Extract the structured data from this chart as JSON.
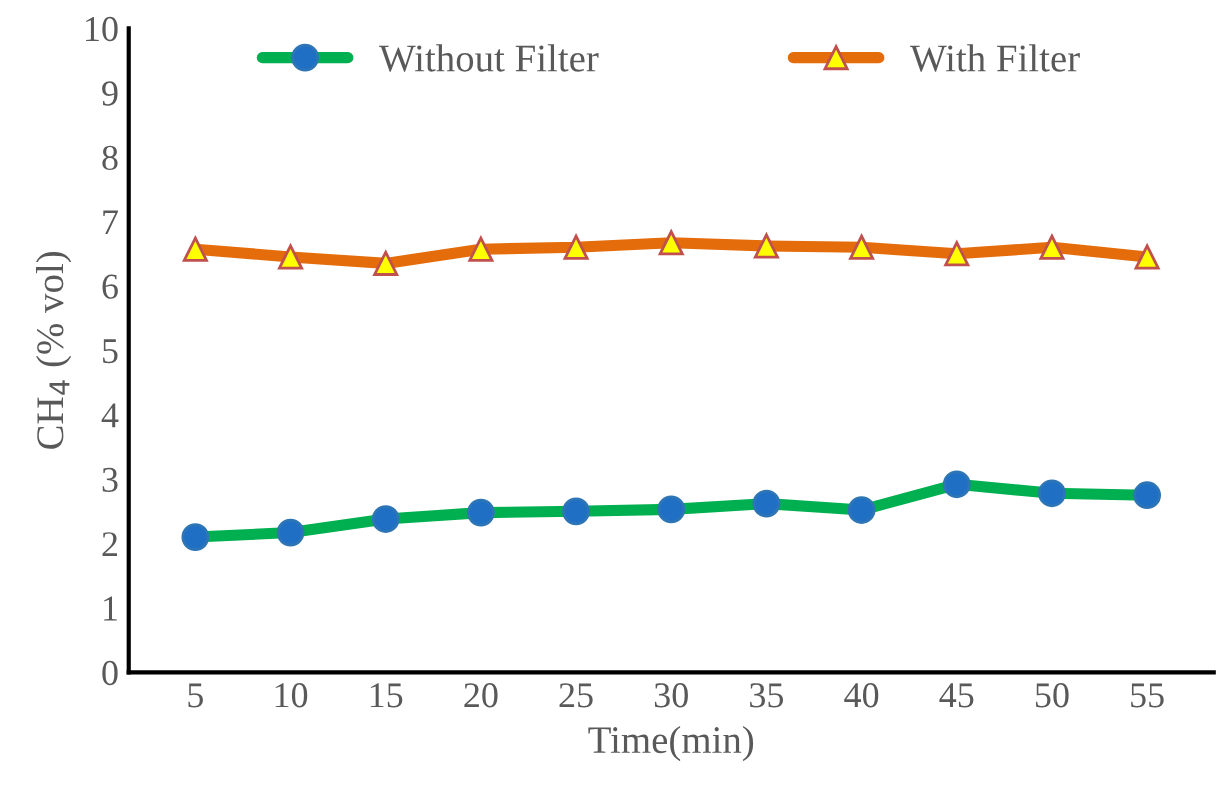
{
  "chart_data": {
    "type": "line",
    "xlabel": "Time(min)",
    "ylabel": "CH$_{4}$ (% vol)",
    "categories": [
      "5",
      "10",
      "15",
      "20",
      "25",
      "30",
      "35",
      "40",
      "45",
      "50",
      "55"
    ],
    "series": [
      {
        "name": "Without Filter",
        "color": "#00b050",
        "marker": "circle",
        "values": [
          2.1,
          2.17,
          2.38,
          2.48,
          2.5,
          2.53,
          2.62,
          2.52,
          2.92,
          2.78,
          2.75
        ]
      },
      {
        "name": "With Filter",
        "color": "#e46c0a",
        "marker": "triangle",
        "values": [
          6.57,
          6.45,
          6.35,
          6.57,
          6.6,
          6.67,
          6.62,
          6.6,
          6.5,
          6.6,
          6.45
        ]
      }
    ],
    "ylim": [
      0,
      10
    ],
    "yticks": [
      0,
      1,
      2,
      3,
      4,
      5,
      6,
      7,
      8,
      9,
      10
    ],
    "grid": false,
    "legend": "top",
    "line_style": "solid"
  }
}
